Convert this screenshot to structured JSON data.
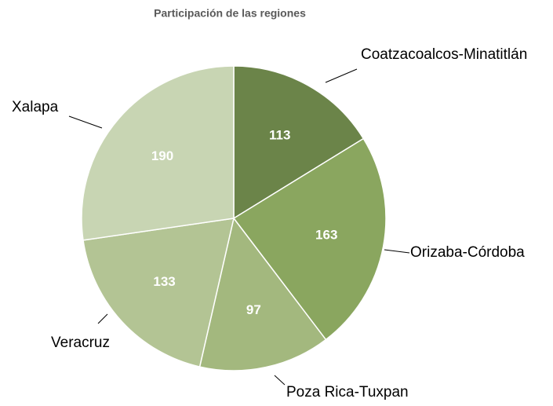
{
  "chart_data": {
    "type": "pie",
    "title": "Participación de las regiones",
    "categories": [
      "Coatzacoalcos-Minatitlán",
      "Orizaba-Córdoba",
      "Poza Rica-Tuxpan",
      "Veracruz",
      "Xalapa"
    ],
    "values": [
      113,
      163,
      97,
      133,
      190
    ],
    "colors": [
      "#6b8449",
      "#8aa65f",
      "#a3b87e",
      "#b3c494",
      "#c8d5b3"
    ]
  }
}
